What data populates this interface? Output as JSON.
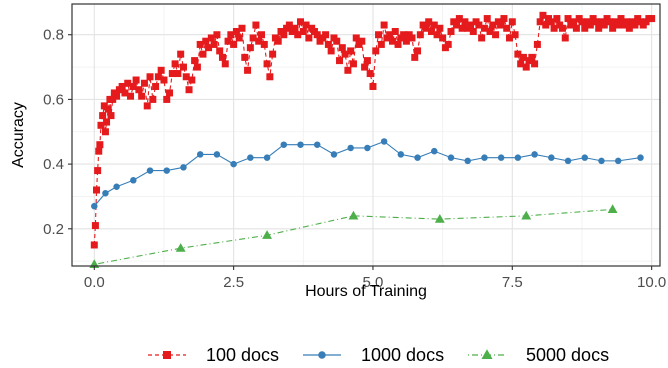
{
  "chart_data": {
    "type": "line",
    "xlabel": "Hours of Training",
    "ylabel": "Accuracy",
    "xlim": [
      -0.4,
      10.15
    ],
    "ylim": [
      0.085,
      0.895
    ],
    "xticks": [
      0.0,
      2.5,
      5.0,
      7.5,
      10.0
    ],
    "xtick_labels": [
      "0.0",
      "2.5",
      "5.0",
      "7.5",
      "10.0"
    ],
    "yticks": [
      0.2,
      0.4,
      0.6,
      0.8
    ],
    "ytick_labels": [
      "0.2",
      "0.4",
      "0.6",
      "0.8"
    ],
    "grid": true,
    "legend_position": "bottom",
    "series": [
      {
        "name": "100 docs",
        "color": "#e41a1c",
        "marker": "square",
        "line_style": "dashed",
        "points": [
          [
            0.0,
            0.15
          ],
          [
            0.02,
            0.21
          ],
          [
            0.04,
            0.32
          ],
          [
            0.06,
            0.38
          ],
          [
            0.08,
            0.44
          ],
          [
            0.1,
            0.46
          ],
          [
            0.12,
            0.52
          ],
          [
            0.15,
            0.55
          ],
          [
            0.18,
            0.58
          ],
          [
            0.2,
            0.5
          ],
          [
            0.22,
            0.53
          ],
          [
            0.25,
            0.57
          ],
          [
            0.28,
            0.6
          ],
          [
            0.3,
            0.55
          ],
          [
            0.33,
            0.6
          ],
          [
            0.36,
            0.62
          ],
          [
            0.4,
            0.61
          ],
          [
            0.45,
            0.63
          ],
          [
            0.5,
            0.64
          ],
          [
            0.55,
            0.62
          ],
          [
            0.6,
            0.65
          ],
          [
            0.65,
            0.61
          ],
          [
            0.7,
            0.64
          ],
          [
            0.75,
            0.66
          ],
          [
            0.8,
            0.63
          ],
          [
            0.85,
            0.61
          ],
          [
            0.9,
            0.65
          ],
          [
            0.95,
            0.58
          ],
          [
            1.0,
            0.67
          ],
          [
            1.05,
            0.6
          ],
          [
            1.1,
            0.64
          ],
          [
            1.15,
            0.67
          ],
          [
            1.2,
            0.69
          ],
          [
            1.25,
            0.66
          ],
          [
            1.3,
            0.6
          ],
          [
            1.35,
            0.62
          ],
          [
            1.4,
            0.68
          ],
          [
            1.45,
            0.71
          ],
          [
            1.5,
            0.68
          ],
          [
            1.55,
            0.74
          ],
          [
            1.6,
            0.7
          ],
          [
            1.65,
            0.67
          ],
          [
            1.7,
            0.63
          ],
          [
            1.75,
            0.66
          ],
          [
            1.8,
            0.72
          ],
          [
            1.85,
            0.7
          ],
          [
            1.9,
            0.77
          ],
          [
            1.95,
            0.74
          ],
          [
            2.0,
            0.78
          ],
          [
            2.05,
            0.76
          ],
          [
            2.1,
            0.79
          ],
          [
            2.15,
            0.77
          ],
          [
            2.2,
            0.8
          ],
          [
            2.25,
            0.75
          ],
          [
            2.3,
            0.73
          ],
          [
            2.35,
            0.71
          ],
          [
            2.4,
            0.78
          ],
          [
            2.45,
            0.8
          ],
          [
            2.5,
            0.77
          ],
          [
            2.55,
            0.81
          ],
          [
            2.6,
            0.79
          ],
          [
            2.65,
            0.82
          ],
          [
            2.7,
            0.73
          ],
          [
            2.75,
            0.69
          ],
          [
            2.8,
            0.76
          ],
          [
            2.85,
            0.79
          ],
          [
            2.9,
            0.83
          ],
          [
            2.95,
            0.78
          ],
          [
            3.0,
            0.8
          ],
          [
            3.05,
            0.77
          ],
          [
            3.1,
            0.71
          ],
          [
            3.15,
            0.67
          ],
          [
            3.2,
            0.74
          ],
          [
            3.25,
            0.79
          ],
          [
            3.3,
            0.78
          ],
          [
            3.35,
            0.81
          ],
          [
            3.4,
            0.8
          ],
          [
            3.45,
            0.82
          ],
          [
            3.5,
            0.83
          ],
          [
            3.55,
            0.81
          ],
          [
            3.6,
            0.82
          ],
          [
            3.65,
            0.8
          ],
          [
            3.7,
            0.84
          ],
          [
            3.75,
            0.81
          ],
          [
            3.8,
            0.83
          ],
          [
            3.85,
            0.79
          ],
          [
            3.9,
            0.82
          ],
          [
            3.95,
            0.81
          ],
          [
            4.0,
            0.8
          ],
          [
            4.05,
            0.78
          ],
          [
            4.1,
            0.79
          ],
          [
            4.15,
            0.8
          ],
          [
            4.2,
            0.77
          ],
          [
            4.25,
            0.75
          ],
          [
            4.3,
            0.79
          ],
          [
            4.35,
            0.78
          ],
          [
            4.4,
            0.72
          ],
          [
            4.45,
            0.76
          ],
          [
            4.5,
            0.74
          ],
          [
            4.55,
            0.69
          ],
          [
            4.6,
            0.75
          ],
          [
            4.65,
            0.71
          ],
          [
            4.7,
            0.79
          ],
          [
            4.75,
            0.77
          ],
          [
            4.8,
            0.78
          ],
          [
            4.85,
            0.7
          ],
          [
            4.9,
            0.72
          ],
          [
            4.95,
            0.68
          ],
          [
            5.0,
            0.64
          ],
          [
            5.05,
            0.75
          ],
          [
            5.1,
            0.8
          ],
          [
            5.15,
            0.77
          ],
          [
            5.2,
            0.83
          ],
          [
            5.25,
            0.79
          ],
          [
            5.3,
            0.8
          ],
          [
            5.35,
            0.78
          ],
          [
            5.4,
            0.81
          ],
          [
            5.45,
            0.77
          ],
          [
            5.5,
            0.79
          ],
          [
            5.55,
            0.8
          ],
          [
            5.6,
            0.78
          ],
          [
            5.65,
            0.8
          ],
          [
            5.7,
            0.79
          ],
          [
            5.75,
            0.73
          ],
          [
            5.8,
            0.75
          ],
          [
            5.85,
            0.8
          ],
          [
            5.9,
            0.83
          ],
          [
            5.95,
            0.82
          ],
          [
            6.0,
            0.84
          ],
          [
            6.05,
            0.81
          ],
          [
            6.1,
            0.83
          ],
          [
            6.15,
            0.8
          ],
          [
            6.2,
            0.82
          ],
          [
            6.25,
            0.79
          ],
          [
            6.3,
            0.76
          ],
          [
            6.35,
            0.77
          ],
          [
            6.4,
            0.81
          ],
          [
            6.45,
            0.84
          ],
          [
            6.5,
            0.83
          ],
          [
            6.55,
            0.85
          ],
          [
            6.6,
            0.82
          ],
          [
            6.65,
            0.84
          ],
          [
            6.7,
            0.82
          ],
          [
            6.75,
            0.83
          ],
          [
            6.8,
            0.81
          ],
          [
            6.85,
            0.84
          ],
          [
            6.9,
            0.83
          ],
          [
            6.95,
            0.79
          ],
          [
            7.0,
            0.82
          ],
          [
            7.05,
            0.85
          ],
          [
            7.1,
            0.81
          ],
          [
            7.15,
            0.83
          ],
          [
            7.2,
            0.8
          ],
          [
            7.25,
            0.84
          ],
          [
            7.3,
            0.83
          ],
          [
            7.35,
            0.85
          ],
          [
            7.4,
            0.82
          ],
          [
            7.45,
            0.79
          ],
          [
            7.5,
            0.84
          ],
          [
            7.55,
            0.8
          ],
          [
            7.6,
            0.74
          ],
          [
            7.65,
            0.71
          ],
          [
            7.7,
            0.73
          ],
          [
            7.75,
            0.7
          ],
          [
            7.8,
            0.72
          ],
          [
            7.85,
            0.73
          ],
          [
            7.9,
            0.71
          ],
          [
            7.95,
            0.77
          ],
          [
            8.0,
            0.84
          ],
          [
            8.05,
            0.86
          ],
          [
            8.1,
            0.83
          ],
          [
            8.15,
            0.85
          ],
          [
            8.2,
            0.84
          ],
          [
            8.25,
            0.82
          ],
          [
            8.3,
            0.85
          ],
          [
            8.35,
            0.83
          ],
          [
            8.4,
            0.82
          ],
          [
            8.45,
            0.79
          ],
          [
            8.5,
            0.85
          ],
          [
            8.55,
            0.83
          ],
          [
            8.6,
            0.84
          ],
          [
            8.65,
            0.82
          ],
          [
            8.7,
            0.85
          ],
          [
            8.75,
            0.84
          ],
          [
            8.8,
            0.82
          ],
          [
            8.85,
            0.84
          ],
          [
            8.9,
            0.83
          ],
          [
            8.95,
            0.85
          ],
          [
            9.0,
            0.84
          ],
          [
            9.05,
            0.82
          ],
          [
            9.1,
            0.84
          ],
          [
            9.15,
            0.83
          ],
          [
            9.2,
            0.85
          ],
          [
            9.25,
            0.84
          ],
          [
            9.3,
            0.82
          ],
          [
            9.35,
            0.84
          ],
          [
            9.4,
            0.83
          ],
          [
            9.45,
            0.85
          ],
          [
            9.5,
            0.83
          ],
          [
            9.55,
            0.84
          ],
          [
            9.6,
            0.82
          ],
          [
            9.65,
            0.84
          ],
          [
            9.7,
            0.83
          ],
          [
            9.75,
            0.85
          ],
          [
            9.8,
            0.84
          ],
          [
            9.85,
            0.83
          ],
          [
            9.9,
            0.84
          ],
          [
            9.95,
            0.85
          ],
          [
            10.0,
            0.85
          ]
        ]
      },
      {
        "name": "1000 docs",
        "color": "#377eb8",
        "marker": "circle",
        "line_style": "solid",
        "points": [
          [
            0.0,
            0.27
          ],
          [
            0.2,
            0.31
          ],
          [
            0.4,
            0.33
          ],
          [
            0.7,
            0.35
          ],
          [
            1.0,
            0.38
          ],
          [
            1.3,
            0.38
          ],
          [
            1.6,
            0.39
          ],
          [
            1.9,
            0.43
          ],
          [
            2.2,
            0.43
          ],
          [
            2.5,
            0.4
          ],
          [
            2.8,
            0.42
          ],
          [
            3.1,
            0.42
          ],
          [
            3.4,
            0.46
          ],
          [
            3.7,
            0.46
          ],
          [
            4.0,
            0.46
          ],
          [
            4.3,
            0.43
          ],
          [
            4.6,
            0.45
          ],
          [
            4.9,
            0.45
          ],
          [
            5.2,
            0.47
          ],
          [
            5.5,
            0.43
          ],
          [
            5.8,
            0.42
          ],
          [
            6.1,
            0.44
          ],
          [
            6.4,
            0.42
          ],
          [
            6.7,
            0.41
          ],
          [
            7.0,
            0.42
          ],
          [
            7.3,
            0.42
          ],
          [
            7.6,
            0.42
          ],
          [
            7.9,
            0.43
          ],
          [
            8.2,
            0.42
          ],
          [
            8.5,
            0.41
          ],
          [
            8.8,
            0.42
          ],
          [
            9.1,
            0.41
          ],
          [
            9.4,
            0.41
          ],
          [
            9.8,
            0.42
          ]
        ]
      },
      {
        "name": "5000 docs",
        "color": "#4daf4a",
        "marker": "triangle",
        "line_style": "dotdash",
        "points": [
          [
            0.0,
            0.09
          ],
          [
            1.55,
            0.14
          ],
          [
            3.1,
            0.18
          ],
          [
            4.65,
            0.24
          ],
          [
            6.2,
            0.23
          ],
          [
            7.75,
            0.24
          ],
          [
            9.3,
            0.26
          ]
        ]
      }
    ]
  }
}
